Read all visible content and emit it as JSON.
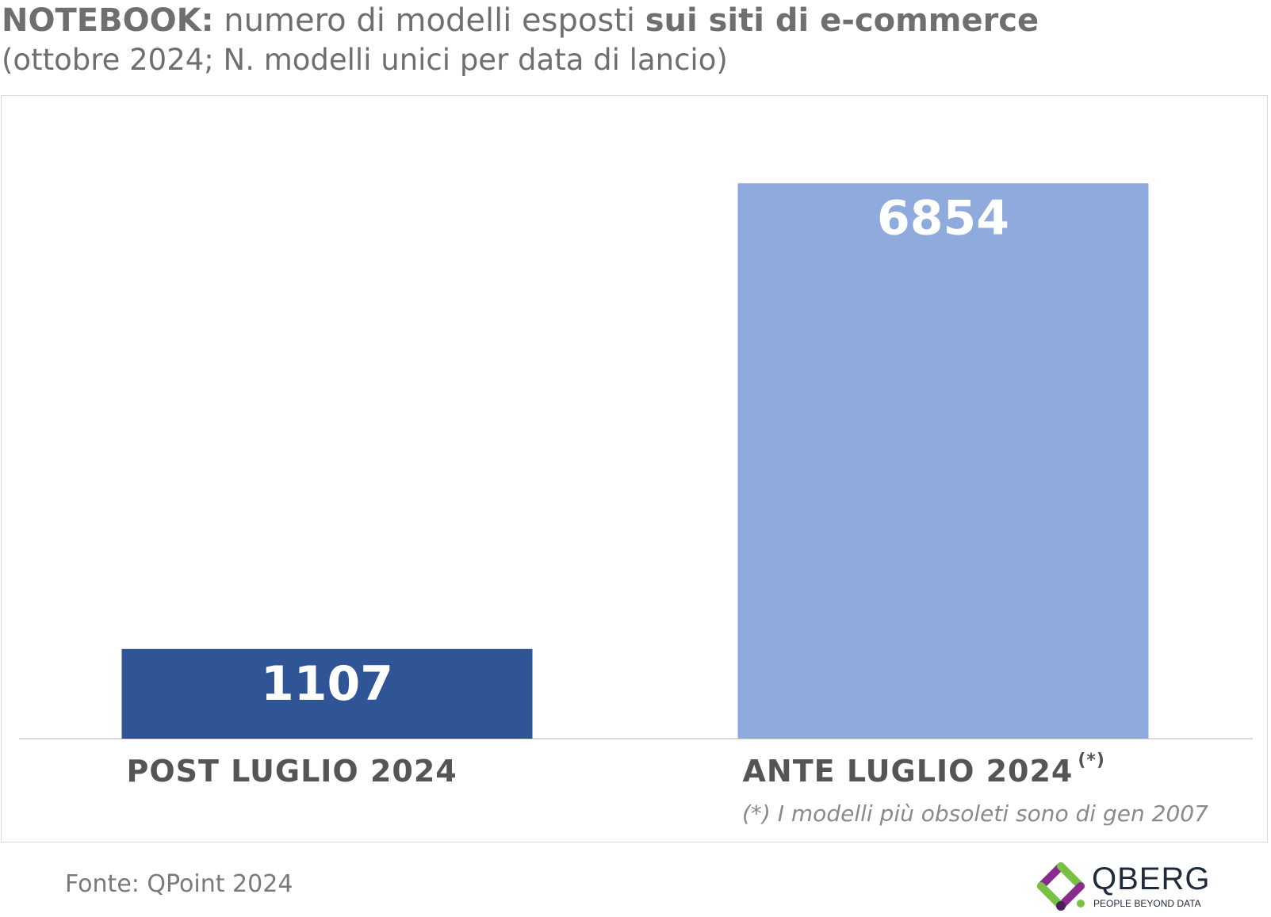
{
  "header": {
    "title_bold": "NOTEBOOK:",
    "title_regular": " numero di modelli esposti ",
    "title_bold2": "sui siti di e-commerce",
    "subtitle": "(ottobre 2024; N. modelli unici per data di lancio)"
  },
  "chart_data": {
    "type": "bar",
    "title": "NOTEBOOK: numero di modelli esposti sui siti di e-commerce",
    "subtitle": "(ottobre 2024; N. modelli unici per data di lancio)",
    "categories": [
      "POST LUGLIO 2024",
      "ANTE LUGLIO 2024"
    ],
    "values": [
      1107,
      6854
    ],
    "value_labels": [
      "1107",
      "6854"
    ],
    "colors": [
      "#2f5597",
      "#8faadc"
    ],
    "category_superscripts": [
      "",
      "(*)"
    ],
    "ylim": [
      0,
      7600
    ],
    "grid": false,
    "legend": "none"
  },
  "footnote": "(*) I modelli più obsoleti sono di gen 2007",
  "source": "Fonte: QPoint 2024",
  "logo": {
    "name": "QBERG",
    "tagline": "PEOPLE BEYOND DATA",
    "colors": [
      "#8a2b8f",
      "#7ac143",
      "#4a1f5c"
    ]
  }
}
